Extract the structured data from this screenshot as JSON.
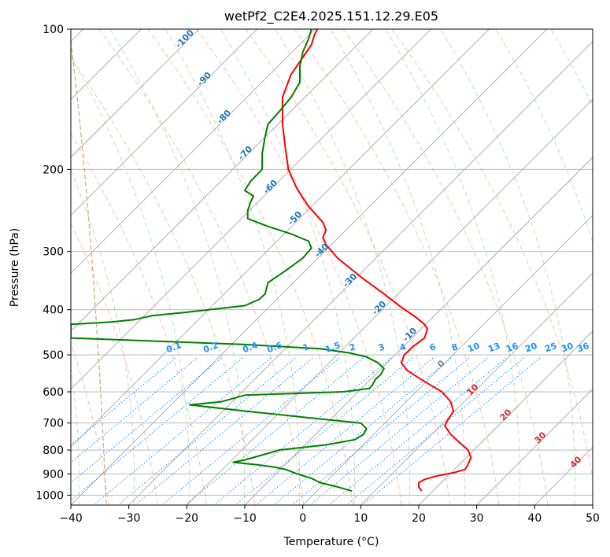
{
  "chart_data": {
    "type": "line",
    "title": "wetPf2_C2E4.2025.151.12.29.E05",
    "xlabel": "Temperature (°C)",
    "ylabel": "Pressure (hPa)",
    "xlim": [
      -40,
      50
    ],
    "ylim": [
      1050,
      100
    ],
    "y_scale": "log",
    "x_ticks": [
      -40,
      -30,
      -20,
      -10,
      0,
      10,
      20,
      30,
      40,
      50
    ],
    "y_ticks": [
      100,
      200,
      300,
      400,
      500,
      600,
      700,
      800,
      900,
      1000
    ],
    "grid": true,
    "series": [
      {
        "color": "#ff0000",
        "points": [
          [
            20.5,
            980
          ],
          [
            20.0,
            960
          ],
          [
            20.0,
            940
          ],
          [
            21.0,
            925
          ],
          [
            23.0,
            910
          ],
          [
            26.0,
            895
          ],
          [
            28.0,
            880
          ],
          [
            28.5,
            860
          ],
          [
            29.0,
            830
          ],
          [
            28.5,
            800
          ],
          [
            27.0,
            770
          ],
          [
            25.5,
            740
          ],
          [
            24.5,
            710
          ],
          [
            25.0,
            690
          ],
          [
            26.0,
            660
          ],
          [
            25.5,
            630
          ],
          [
            24.0,
            600
          ],
          [
            22.0,
            580
          ],
          [
            20.0,
            560
          ],
          [
            18.0,
            540
          ],
          [
            17.0,
            520
          ],
          [
            17.5,
            500
          ],
          [
            19.0,
            480
          ],
          [
            21.0,
            460
          ],
          [
            21.5,
            440
          ],
          [
            21.0,
            430
          ],
          [
            19.5,
            415
          ],
          [
            17.0,
            395
          ],
          [
            14.0,
            370
          ],
          [
            10.0,
            340
          ],
          [
            6.0,
            310
          ],
          [
            4.0,
            290
          ],
          [
            3.5,
            280
          ],
          [
            4.0,
            270
          ],
          [
            3.5,
            260
          ],
          [
            1.0,
            240
          ],
          [
            -1.0,
            220
          ],
          [
            -2.5,
            200
          ],
          [
            -3.0,
            180
          ],
          [
            -3.5,
            160
          ],
          [
            -3.5,
            150
          ],
          [
            -3.5,
            140
          ],
          [
            -2.0,
            125
          ],
          [
            0.0,
            115
          ],
          [
            1.5,
            108
          ],
          [
            2.0,
            103
          ],
          [
            2.5,
            100
          ]
        ]
      },
      {
        "color": "#008000",
        "points": [
          [
            8.5,
            980
          ],
          [
            6.0,
            960
          ],
          [
            3.0,
            940
          ],
          [
            1.5,
            920
          ],
          [
            -1.0,
            900
          ],
          [
            -3.0,
            880
          ],
          [
            -5.0,
            870
          ],
          [
            -8.0,
            860
          ],
          [
            -12.0,
            850
          ],
          [
            -10.0,
            840
          ],
          [
            -7.0,
            820
          ],
          [
            -4.0,
            800
          ],
          [
            4.0,
            780
          ],
          [
            9.0,
            760
          ],
          [
            10.5,
            740
          ],
          [
            11.0,
            720
          ],
          [
            10.0,
            700
          ],
          [
            0.0,
            680
          ],
          [
            -10.0,
            660
          ],
          [
            -19.5,
            640
          ],
          [
            -14.0,
            630
          ],
          [
            -12.0,
            620
          ],
          [
            -10.0,
            610
          ],
          [
            7.0,
            600
          ],
          [
            11.5,
            590
          ],
          [
            12.0,
            580
          ],
          [
            12.5,
            565
          ],
          [
            13.5,
            550
          ],
          [
            14.0,
            535
          ],
          [
            13.0,
            520
          ],
          [
            11.0,
            505
          ],
          [
            8.0,
            495
          ],
          [
            3.0,
            485
          ],
          [
            -10.0,
            475
          ],
          [
            -30.0,
            465
          ],
          [
            -40.0,
            460
          ],
          [
            -40.0,
            430
          ],
          [
            -33.0,
            425
          ],
          [
            -29.0,
            420
          ],
          [
            -26.0,
            412
          ],
          [
            -20.0,
            405
          ],
          [
            -10.0,
            392
          ],
          [
            -7.5,
            380
          ],
          [
            -6.5,
            370
          ],
          [
            -6.0,
            350
          ],
          [
            -3.0,
            330
          ],
          [
            0.0,
            310
          ],
          [
            1.5,
            295
          ],
          [
            1.0,
            285
          ],
          [
            -2.0,
            275
          ],
          [
            -6.0,
            265
          ],
          [
            -9.5,
            255
          ],
          [
            -9.5,
            245
          ],
          [
            -9.0,
            235
          ],
          [
            -8.5,
            228
          ],
          [
            -10.0,
            222
          ],
          [
            -9.0,
            212
          ],
          [
            -7.0,
            200
          ],
          [
            -7.0,
            185
          ],
          [
            -6.5,
            170
          ],
          [
            -6.0,
            160
          ],
          [
            -4.0,
            150
          ],
          [
            -2.0,
            140
          ],
          [
            -0.5,
            130
          ],
          [
            -0.5,
            120
          ],
          [
            0.0,
            112
          ],
          [
            1.0,
            105
          ],
          [
            1.5,
            100
          ]
        ]
      }
    ],
    "isotherms": [
      -100,
      -90,
      -80,
      -70,
      -60,
      -50,
      -40,
      -30,
      -20,
      -10
    ],
    "isotherm_label_color": "#1f77b4",
    "mixing_ratios": [
      "0.1",
      "0.2",
      "0.4",
      "0.6",
      "1",
      "1.5",
      "2",
      "3",
      "4",
      "6",
      "8",
      "10",
      "13",
      "16",
      "20",
      "25",
      "30",
      "36"
    ],
    "mixing_ratio_color": "#1e90ff",
    "moist_labels": [
      "0",
      "10",
      "20",
      "30",
      "40"
    ],
    "moist_label_colors": [
      "#808080",
      "#d62728",
      "#d62728",
      "#d62728",
      "#d62728"
    ]
  }
}
